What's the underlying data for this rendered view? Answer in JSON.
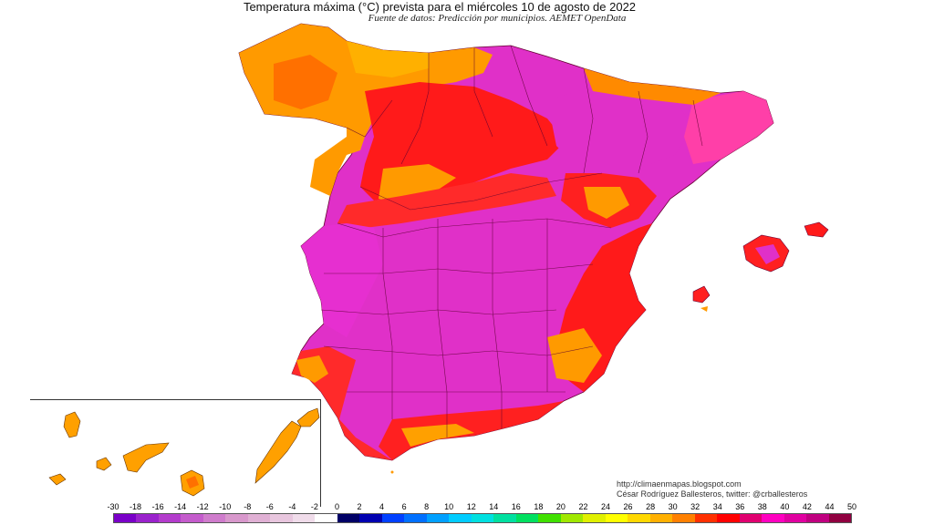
{
  "header": {
    "title": "Temperatura máxima (°C) prevista para el miércoles 10 de agosto de 2022",
    "subtitle": "Fuente de datos: Predicción por municipios. AEMET OpenData"
  },
  "credits": {
    "url": "http://climaenmapas.blogspot.com",
    "author": "César Rodríguez Ballesteros, twitter: @crballesteros"
  },
  "legend": {
    "labels": [
      "-30",
      "-18",
      "-16",
      "-14",
      "-12",
      "-10",
      "-8",
      "-6",
      "-4",
      "-2",
      "0",
      "2",
      "4",
      "6",
      "8",
      "10",
      "12",
      "14",
      "16",
      "18",
      "20",
      "22",
      "24",
      "26",
      "28",
      "30",
      "32",
      "34",
      "36",
      "38",
      "40",
      "42",
      "44",
      "50"
    ],
    "colors": [
      "#7a00c8",
      "#9a22cc",
      "#b33ccc",
      "#c45ccc",
      "#cf7ccc",
      "#d898cc",
      "#e0b0d4",
      "#e8c6de",
      "#f0dcea",
      "#ffffff",
      "#000066",
      "#0000b0",
      "#0040ff",
      "#0070ff",
      "#00a0ff",
      "#00ccff",
      "#00e0e0",
      "#00e0a0",
      "#00e060",
      "#40e000",
      "#a0e800",
      "#e0f000",
      "#ffff00",
      "#ffd800",
      "#ffb000",
      "#ff8000",
      "#ff3000",
      "#ff0000",
      "#e00070",
      "#ff00c0",
      "#e000a0",
      "#c00080",
      "#900040"
    ]
  },
  "map": {
    "regions": [
      "Península Ibérica",
      "Islas Baleares",
      "Islas Canarias"
    ],
    "dominant_colors": {
      "above_40": "#e62fd0",
      "38_40": "#ff2a8c",
      "34_36": "#ff1a1a",
      "30_32": "#ff6a00",
      "28_30": "#ffa000"
    }
  }
}
